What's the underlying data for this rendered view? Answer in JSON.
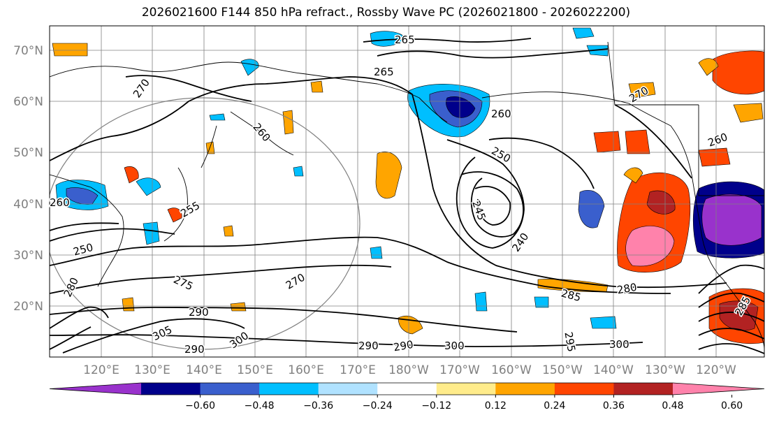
{
  "title": "2026021600 F144 850 hPa refract., Rossby Wave PC (2026021800 - 2026022200)",
  "lat_ticks": [
    "20°N",
    "30°N",
    "40°N",
    "50°N",
    "60°N",
    "70°N"
  ],
  "lon_ticks": [
    "120°E",
    "130°E",
    "140°E",
    "150°E",
    "160°E",
    "170°E",
    "180°W",
    "170°W",
    "160°W",
    "150°W",
    "140°W",
    "130°W",
    "120°W"
  ],
  "colorbar": {
    "ticks": [
      "−0.60",
      "−0.48",
      "−0.36",
      "−0.24",
      "−0.12",
      "0.12",
      "0.24",
      "0.36",
      "0.48",
      "0.60"
    ],
    "colors": [
      "#9932CC",
      "#00008B",
      "#3A5FCD",
      "#00BFFF",
      "#B0E2FF",
      "#FFFFFF",
      "#FFEC8B",
      "#FFA500",
      "#FF4500",
      "#B22222",
      "#FF82AB"
    ]
  },
  "contour_labels": [
    "265",
    "265",
    "270",
    "270",
    "260",
    "260",
    "250",
    "245",
    "240",
    "250",
    "255",
    "275",
    "270",
    "280",
    "285",
    "290",
    "305",
    "300",
    "290",
    "290",
    "290",
    "300",
    "295",
    "300",
    "260",
    "285",
    "260",
    "280"
  ]
}
